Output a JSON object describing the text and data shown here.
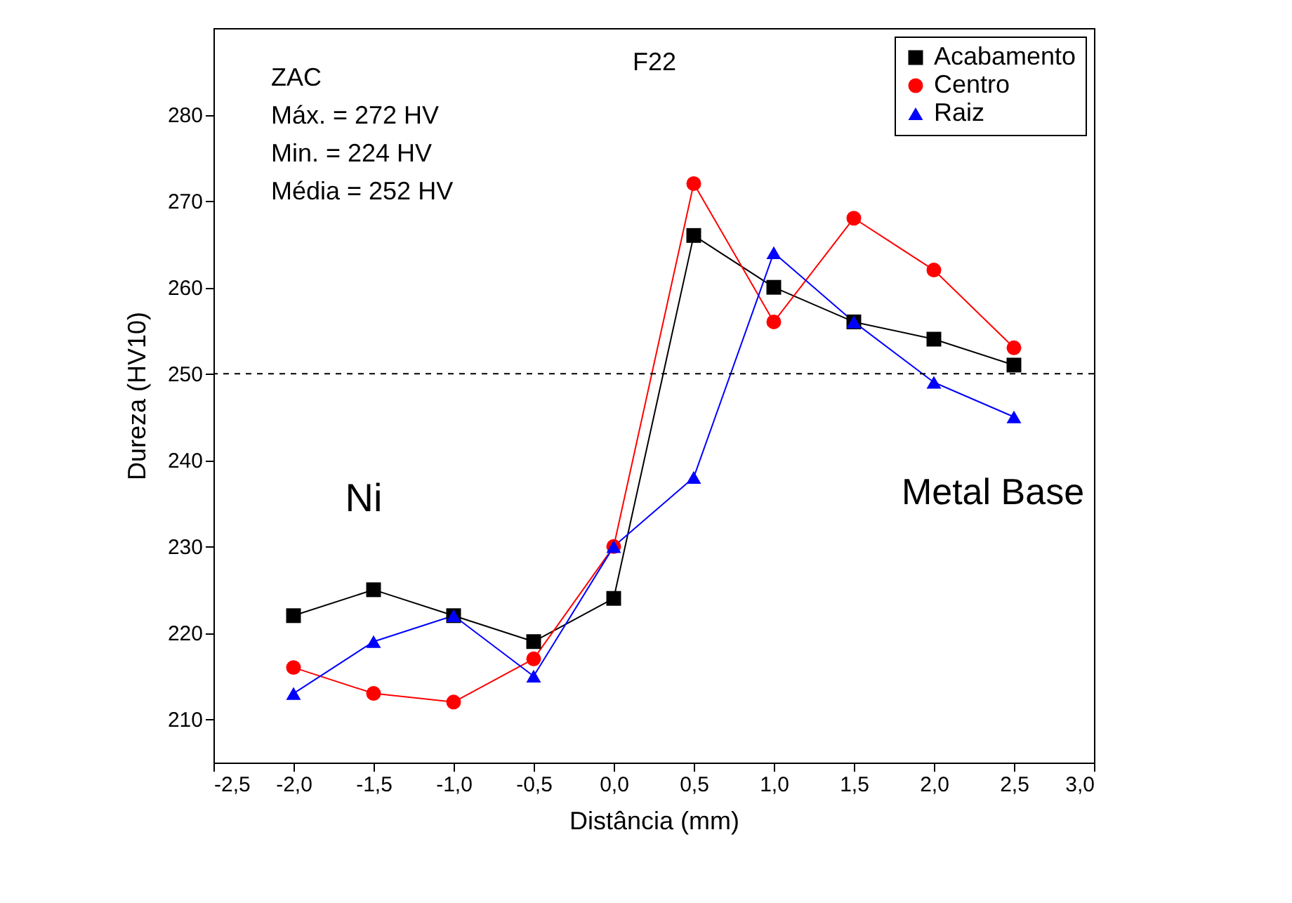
{
  "chart_data": {
    "type": "line",
    "title": "F22",
    "xlabel": "Distância (mm)",
    "ylabel": "Dureza (HV10)",
    "x": [
      -2.0,
      -1.5,
      -1.0,
      -0.5,
      0.0,
      0.5,
      1.0,
      1.5,
      2.0,
      2.5
    ],
    "series": [
      {
        "name": "Acabamento",
        "color": "#000000",
        "marker": "square",
        "values": [
          222,
          225,
          222,
          219,
          224,
          266,
          260,
          256,
          254,
          251
        ]
      },
      {
        "name": "Centro",
        "color": "#ff0000",
        "marker": "circle",
        "values": [
          216,
          213,
          212,
          217,
          230,
          272,
          256,
          268,
          262,
          253
        ]
      },
      {
        "name": "Raiz",
        "color": "#0000ff",
        "marker": "triangle",
        "values": [
          213,
          219,
          222,
          215,
          230,
          238,
          264,
          256,
          249,
          245
        ]
      }
    ],
    "xlim": [
      -2.5,
      3.0
    ],
    "xticks": [
      {
        "value": -2.5,
        "label": "-2,5"
      },
      {
        "value": -2.0,
        "label": "-2,0"
      },
      {
        "value": -1.5,
        "label": "-1,5"
      },
      {
        "value": -1.0,
        "label": "-1,0"
      },
      {
        "value": -0.5,
        "label": "-0,5"
      },
      {
        "value": 0.0,
        "label": "0,0"
      },
      {
        "value": 0.5,
        "label": "0,5"
      },
      {
        "value": 1.0,
        "label": "1,0"
      },
      {
        "value": 1.5,
        "label": "1,5"
      },
      {
        "value": 2.0,
        "label": "2,0"
      },
      {
        "value": 2.5,
        "label": "2,5"
      },
      {
        "value": 3.0,
        "label": "3,0"
      }
    ],
    "ylim": [
      205,
      290
    ],
    "yticks": [
      210,
      220,
      230,
      240,
      250,
      260,
      270,
      280
    ],
    "ref_lines": [
      {
        "axis": "y",
        "value": 250,
        "line_style": "dashed",
        "color": "#000000"
      }
    ],
    "annotations": [
      "ZAC",
      "Máx. = 272 HV",
      "Min. = 224 HV",
      "Média = 252 HV",
      "Ni",
      "Metal Base"
    ],
    "legend": "top right",
    "grid": false
  }
}
